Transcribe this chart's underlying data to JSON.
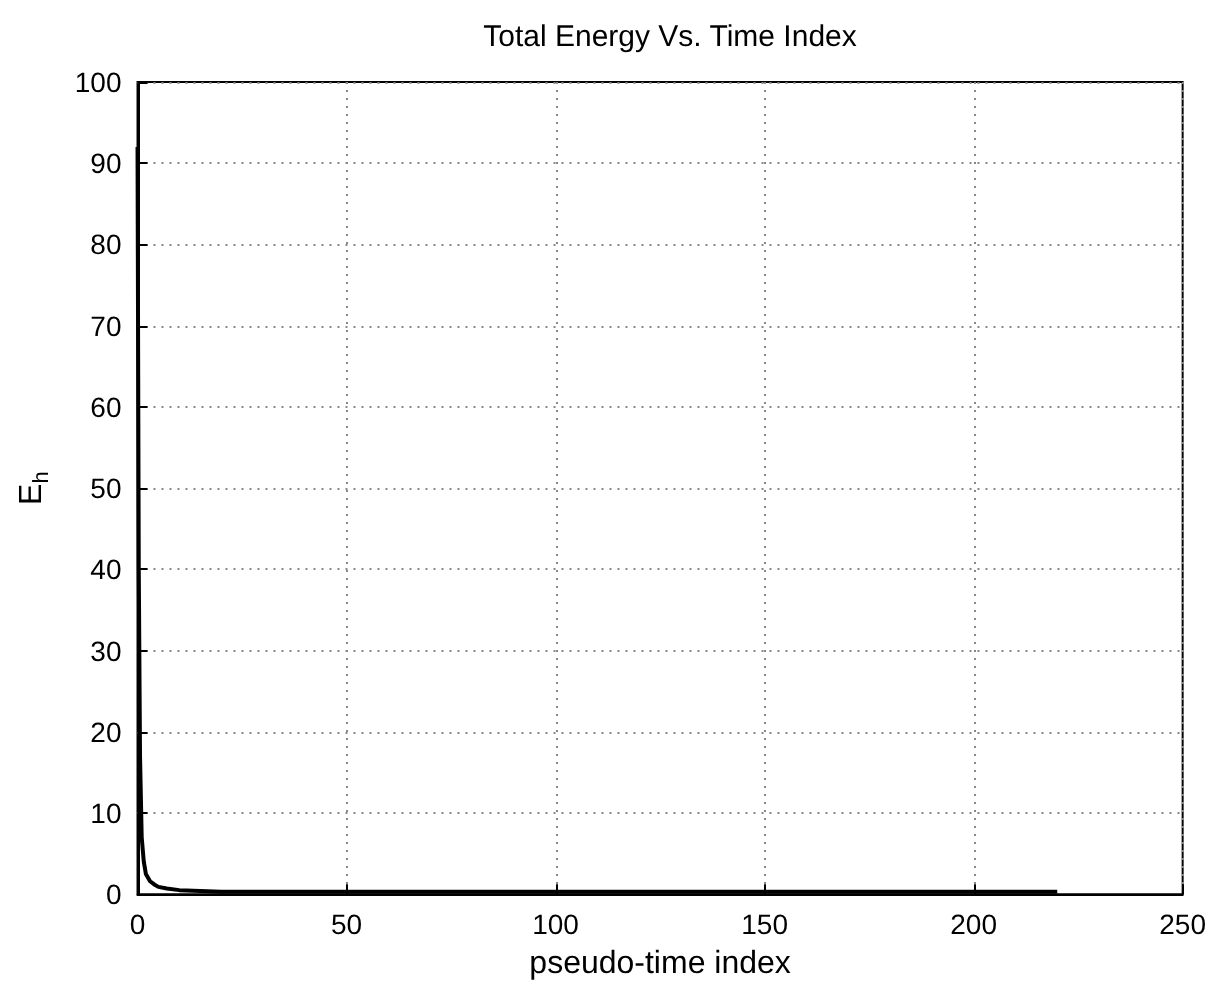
{
  "chart_data": {
    "type": "line",
    "title": "Total Energy Vs. Time Index",
    "xlabel": "pseudo-time index",
    "ylabel": "E$_{h}$",
    "x": [
      0,
      0.3,
      0.6,
      1,
      1.5,
      2,
      3,
      4,
      5,
      7,
      10,
      15,
      20,
      30,
      50,
      100,
      150,
      220
    ],
    "series": [
      {
        "color": "#000000",
        "values": [
          92,
          40,
          17,
          7,
          4,
          2.5,
          1.6,
          1.2,
          0.9,
          0.7,
          0.5,
          0.4,
          0.3,
          0.3,
          0.3,
          0.3,
          0.3,
          0.3
        ]
      }
    ],
    "xlim": [
      0,
      250
    ],
    "xticks": [
      0,
      50,
      100,
      150,
      200,
      250
    ],
    "ylim": [
      0,
      100
    ],
    "yticks": [
      0,
      10,
      20,
      30,
      40,
      50,
      60,
      70,
      80,
      90,
      100
    ],
    "grid": true,
    "marker": "none",
    "line_style": "solid"
  }
}
